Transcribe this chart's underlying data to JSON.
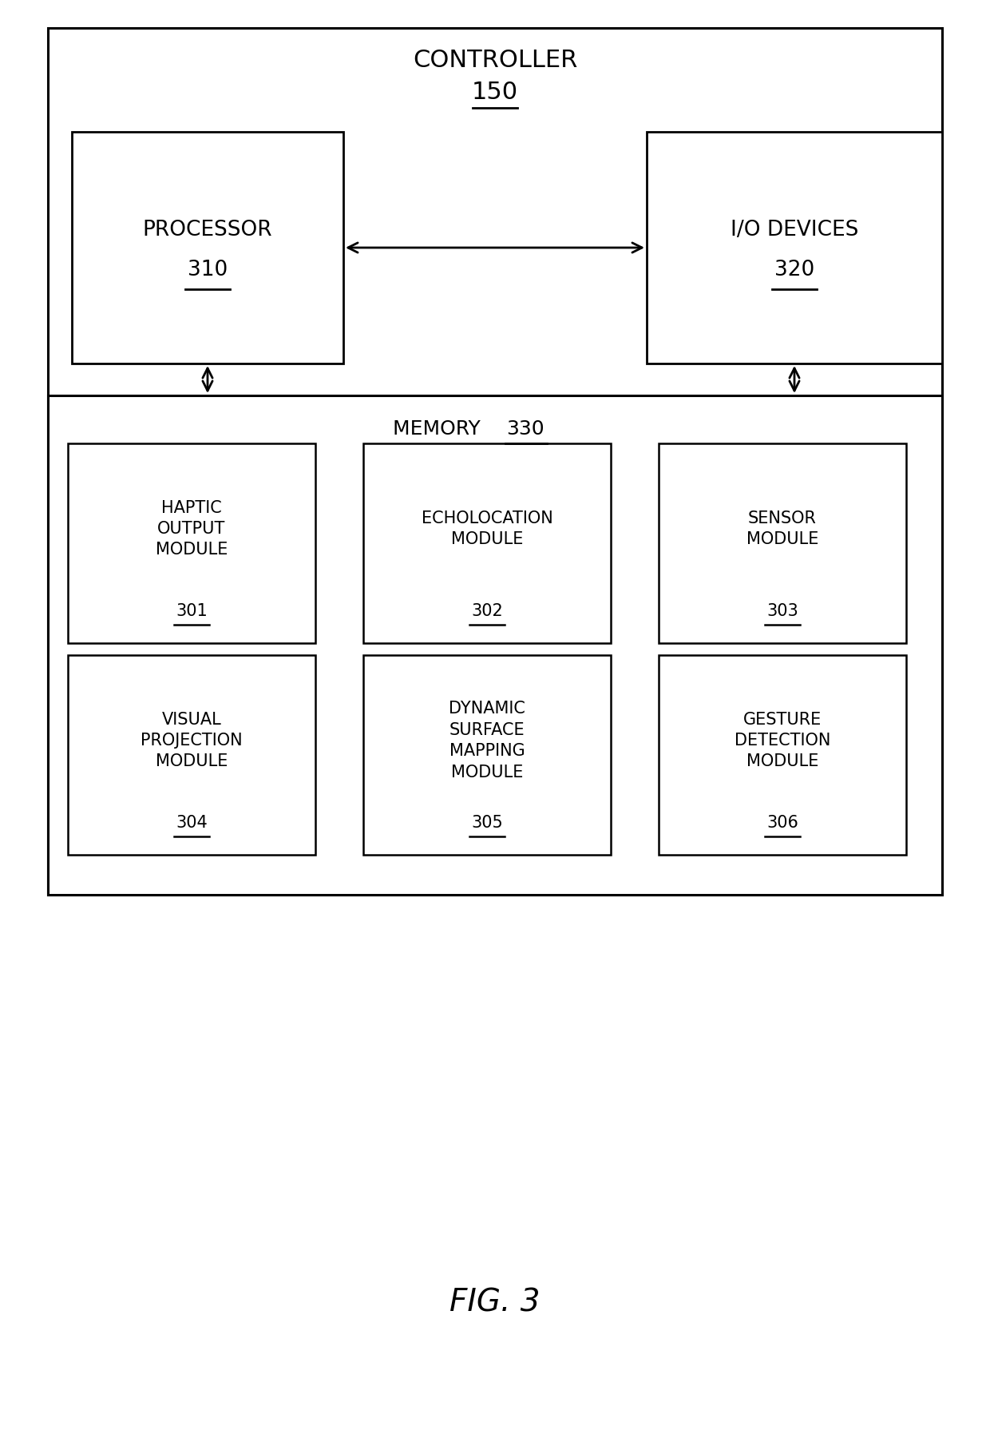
{
  "bg_color": "#ffffff",
  "line_color": "#000000",
  "text_color": "#000000",
  "fig_label": "FIG. 3",
  "controller_text": "CONTROLLER",
  "controller_ref": "150",
  "processor_text": "PROCESSOR",
  "processor_ref": "310",
  "io_text": "I/O DEVICES",
  "io_ref": "320",
  "memory_text": "MEMORY",
  "memory_ref": "330",
  "modules": [
    {
      "lines": [
        "HAPTIC",
        "OUTPUT",
        "MODULE"
      ],
      "ref": "301"
    },
    {
      "lines": [
        "ECHOLOCATION",
        "MODULE"
      ],
      "ref": "302"
    },
    {
      "lines": [
        "SENSOR",
        "MODULE"
      ],
      "ref": "303"
    },
    {
      "lines": [
        "VISUAL",
        "PROJECTION",
        "MODULE"
      ],
      "ref": "304"
    },
    {
      "lines": [
        "DYNAMIC",
        "SURFACE",
        "MAPPING",
        "MODULE"
      ],
      "ref": "305"
    },
    {
      "lines": [
        "GESTURE",
        "DETECTION",
        "MODULE"
      ],
      "ref": "306"
    }
  ],
  "font_family": "DejaVu Sans",
  "lw_outer": 2.2,
  "lw_inner": 1.8,
  "main_fontsize": 17,
  "ref_fontsize": 17,
  "module_fontsize": 15,
  "module_ref_fontsize": 15,
  "memory_fontsize": 17,
  "fig_fontsize": 28
}
